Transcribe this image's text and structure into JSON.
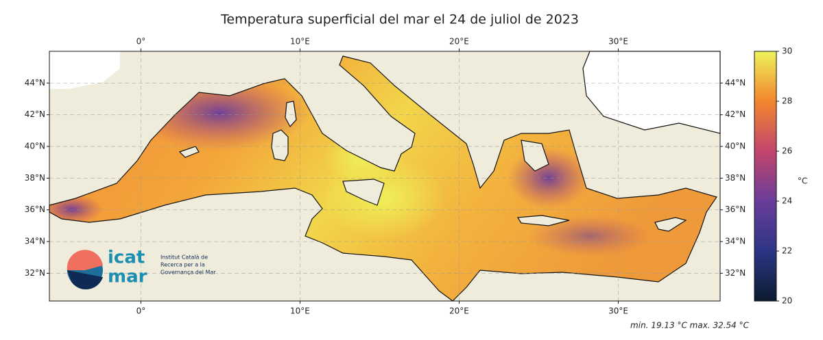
{
  "chart_data": {
    "type": "map",
    "title": "Temperatura superficial del mar el 24 de juliol de 2023",
    "xlim": [
      -5.75,
      36.4
    ],
    "ylim": [
      30.25,
      46
    ],
    "xticks": [
      {
        "value": 0,
        "label": "0°"
      },
      {
        "value": 10,
        "label": "10°E"
      },
      {
        "value": 20,
        "label": "20°E"
      },
      {
        "value": 30,
        "label": "30°E"
      }
    ],
    "yticks": [
      {
        "value": 32,
        "label": "32°N"
      },
      {
        "value": 34,
        "label": "34°N"
      },
      {
        "value": 36,
        "label": "36°N"
      },
      {
        "value": 38,
        "label": "38°N"
      },
      {
        "value": 40,
        "label": "40°N"
      },
      {
        "value": 42,
        "label": "42°N"
      },
      {
        "value": 44,
        "label": "44°N"
      }
    ],
    "grid": true,
    "colorbar": {
      "label": "°C",
      "lim": [
        20,
        30
      ],
      "ticks": [
        20,
        22,
        24,
        26,
        28,
        30
      ],
      "colors": [
        "#0b1a2e",
        "#2c3585",
        "#6a3d9a",
        "#c2456c",
        "#f2862e",
        "#eef35a"
      ]
    },
    "note": "min. 19.13 °C max. 32.54 °C"
  },
  "logo": {
    "name": [
      "icat",
      "mar"
    ],
    "text": [
      "Institut Català de",
      "Recerca per a la",
      "Governança del Mar"
    ]
  }
}
